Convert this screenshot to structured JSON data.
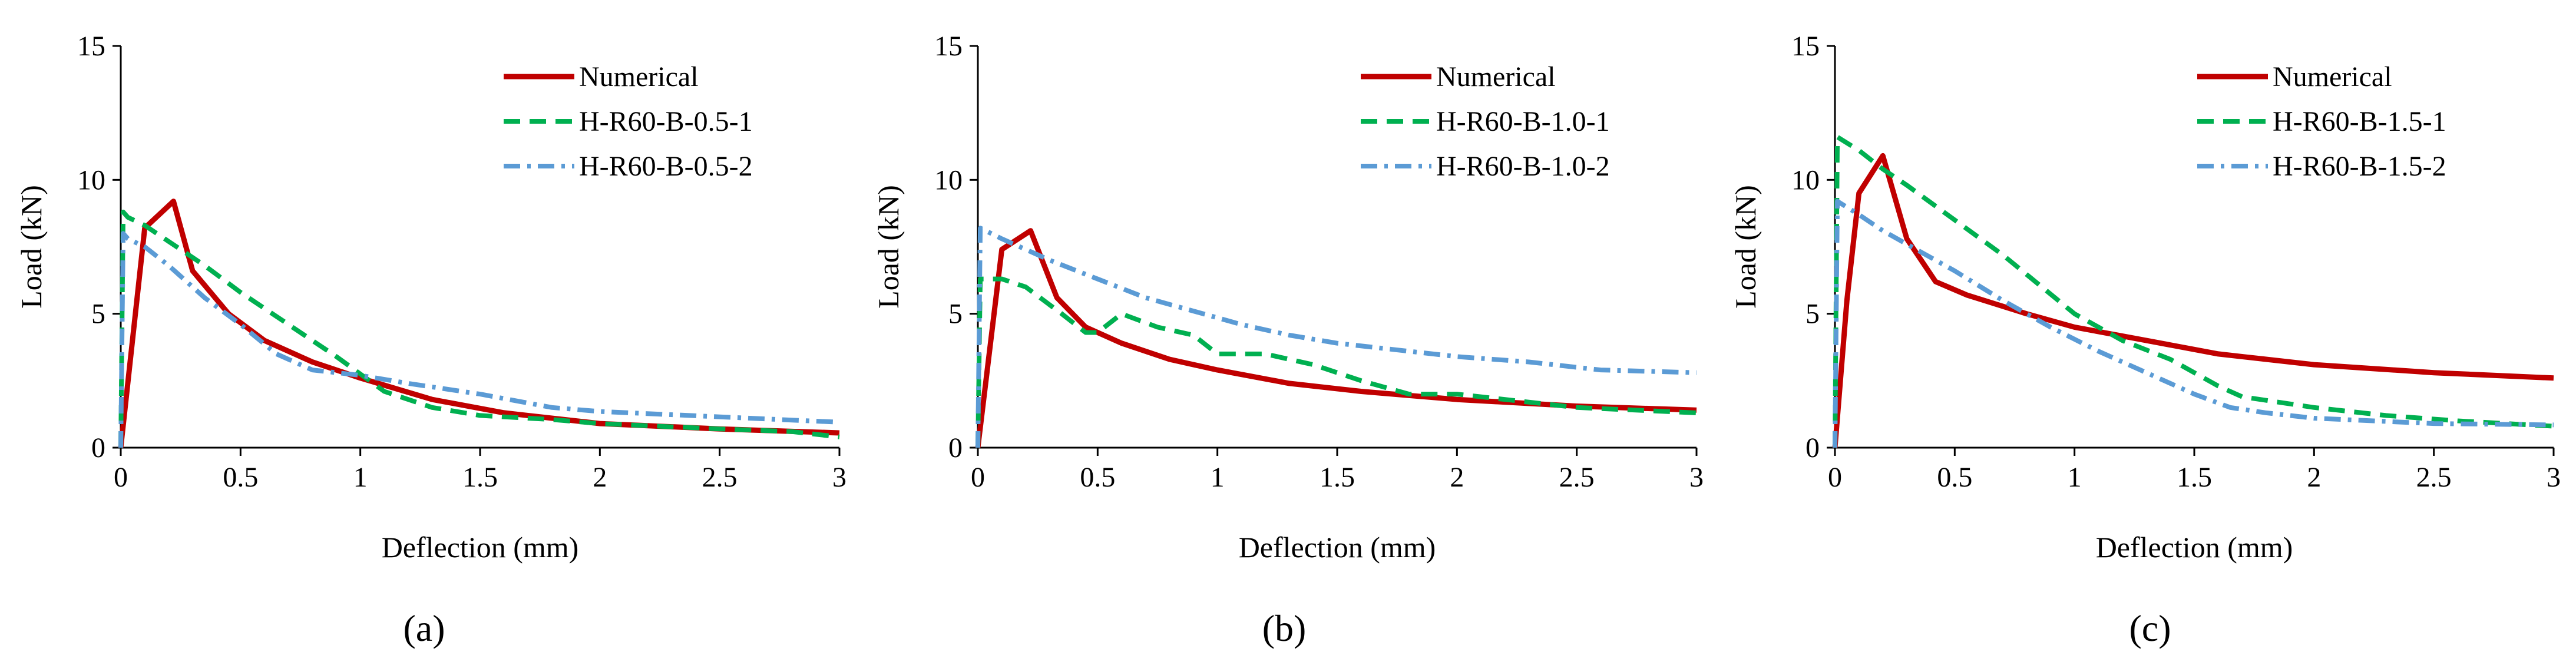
{
  "chart_data": [
    {
      "type": "line",
      "panel_label": "(a)",
      "xlabel": "Deflection (mm)",
      "ylabel": "Load (kN)",
      "xlim": [
        0,
        3
      ],
      "ylim": [
        0,
        15
      ],
      "xticks": [
        "0",
        "0.5",
        "1",
        "1.5",
        "2",
        "2.5",
        "3"
      ],
      "yticks": [
        "0",
        "5",
        "10",
        "15"
      ],
      "legend_position": "top-right",
      "grid": false,
      "series": [
        {
          "name": "Numerical",
          "style": "solid",
          "color": "#c00000",
          "x": [
            0,
            0.1,
            0.22,
            0.3,
            0.45,
            0.6,
            0.8,
            1.0,
            1.3,
            1.6,
            2.0,
            2.5,
            3.0
          ],
          "y": [
            0,
            8.2,
            9.2,
            6.6,
            5.0,
            4.0,
            3.2,
            2.6,
            1.8,
            1.3,
            0.9,
            0.7,
            0.55
          ]
        },
        {
          "name": "H-R60-B-0.5-1",
          "style": "dashed",
          "color": "#00b050",
          "x": [
            0,
            0.01,
            0.03,
            0.1,
            0.2,
            0.35,
            0.5,
            0.7,
            0.9,
            1.1,
            1.3,
            1.5,
            1.8,
            2.0,
            2.5,
            2.8,
            3.0
          ],
          "y": [
            0,
            8.8,
            8.6,
            8.3,
            7.7,
            6.8,
            5.8,
            4.6,
            3.4,
            2.1,
            1.5,
            1.2,
            1.05,
            0.9,
            0.7,
            0.6,
            0.4
          ]
        },
        {
          "name": "H-R60-B-0.5-2",
          "style": "dashdot",
          "color": "#5b9bd5",
          "x": [
            0,
            0.01,
            0.03,
            0.1,
            0.2,
            0.35,
            0.5,
            0.65,
            0.8,
            1.0,
            1.2,
            1.5,
            1.8,
            2.0,
            2.5,
            3.0
          ],
          "y": [
            0,
            8.0,
            7.8,
            7.5,
            6.8,
            5.6,
            4.6,
            3.5,
            2.9,
            2.7,
            2.4,
            2.0,
            1.5,
            1.35,
            1.15,
            0.95
          ]
        }
      ]
    },
    {
      "type": "line",
      "panel_label": "(b)",
      "xlabel": "Deflection (mm)",
      "ylabel": "Load (kN)",
      "xlim": [
        0,
        3
      ],
      "ylim": [
        0,
        15
      ],
      "xticks": [
        "0",
        "0.5",
        "1",
        "1.5",
        "2",
        "2.5",
        "3"
      ],
      "yticks": [
        "0",
        "5",
        "10",
        "15"
      ],
      "legend_position": "top-right",
      "grid": false,
      "series": [
        {
          "name": "Numerical",
          "style": "solid",
          "color": "#c00000",
          "x": [
            0,
            0.1,
            0.22,
            0.33,
            0.45,
            0.6,
            0.8,
            1.0,
            1.3,
            1.6,
            2.0,
            2.5,
            3.0
          ],
          "y": [
            0,
            7.4,
            8.1,
            5.6,
            4.5,
            3.9,
            3.3,
            2.9,
            2.4,
            2.1,
            1.8,
            1.55,
            1.4
          ]
        },
        {
          "name": "H-R60-B-1.0-1",
          "style": "dashed",
          "color": "#00b050",
          "x": [
            0,
            0.01,
            0.1,
            0.2,
            0.35,
            0.45,
            0.5,
            0.6,
            0.75,
            0.9,
            1.0,
            1.2,
            1.4,
            1.6,
            1.8,
            2.0,
            2.5,
            3.0
          ],
          "y": [
            0,
            6.3,
            6.3,
            6.0,
            5.0,
            4.3,
            4.3,
            5.0,
            4.5,
            4.2,
            3.5,
            3.5,
            3.1,
            2.5,
            2.0,
            2.0,
            1.5,
            1.3
          ]
        },
        {
          "name": "H-R60-B-1.0-2",
          "style": "dashdot",
          "color": "#5b9bd5",
          "x": [
            0,
            0.01,
            0.1,
            0.3,
            0.5,
            0.7,
            0.9,
            1.1,
            1.3,
            1.5,
            1.7,
            2.0,
            2.3,
            2.6,
            2.8,
            3.0
          ],
          "y": [
            0,
            8.2,
            7.8,
            7.0,
            6.3,
            5.6,
            5.1,
            4.6,
            4.2,
            3.9,
            3.7,
            3.4,
            3.2,
            2.9,
            2.85,
            2.8
          ]
        }
      ]
    },
    {
      "type": "line",
      "panel_label": "(c)",
      "xlabel": "Deflection (mm)",
      "ylabel": "Load (kN)",
      "xlim": [
        0,
        3
      ],
      "ylim": [
        0,
        15
      ],
      "xticks": [
        "0",
        "0.5",
        "1",
        "1.5",
        "2",
        "2.5",
        "3"
      ],
      "yticks": [
        "0",
        "5",
        "10",
        "15"
      ],
      "legend_position": "top-right",
      "grid": false,
      "series": [
        {
          "name": "Numerical",
          "style": "solid",
          "color": "#c00000",
          "x": [
            0,
            0.05,
            0.1,
            0.2,
            0.3,
            0.42,
            0.55,
            0.8,
            1.0,
            1.3,
            1.6,
            1.8,
            2.0,
            2.5,
            3.0
          ],
          "y": [
            0,
            5.5,
            9.5,
            10.9,
            7.8,
            6.2,
            5.7,
            5.0,
            4.5,
            4.0,
            3.5,
            3.3,
            3.1,
            2.8,
            2.6
          ]
        },
        {
          "name": "H-R60-B-1.5-1",
          "style": "dashed",
          "color": "#00b050",
          "x": [
            0,
            0.01,
            0.1,
            0.2,
            0.3,
            0.5,
            0.7,
            1.0,
            1.2,
            1.4,
            1.6,
            1.7,
            2.0,
            2.3,
            2.6,
            3.0
          ],
          "y": [
            0,
            11.6,
            11.1,
            10.4,
            9.8,
            8.5,
            7.2,
            5.0,
            4.0,
            3.3,
            2.3,
            1.9,
            1.5,
            1.2,
            1.0,
            0.8
          ]
        },
        {
          "name": "H-R60-B-1.5-2",
          "style": "dashdot",
          "color": "#5b9bd5",
          "x": [
            0,
            0.01,
            0.1,
            0.2,
            0.3,
            0.5,
            0.7,
            0.9,
            1.1,
            1.3,
            1.5,
            1.65,
            1.8,
            2.0,
            2.5,
            3.0
          ],
          "y": [
            0,
            9.2,
            8.7,
            8.1,
            7.6,
            6.6,
            5.5,
            4.5,
            3.6,
            2.8,
            2.0,
            1.5,
            1.3,
            1.1,
            0.9,
            0.85
          ]
        }
      ]
    }
  ]
}
